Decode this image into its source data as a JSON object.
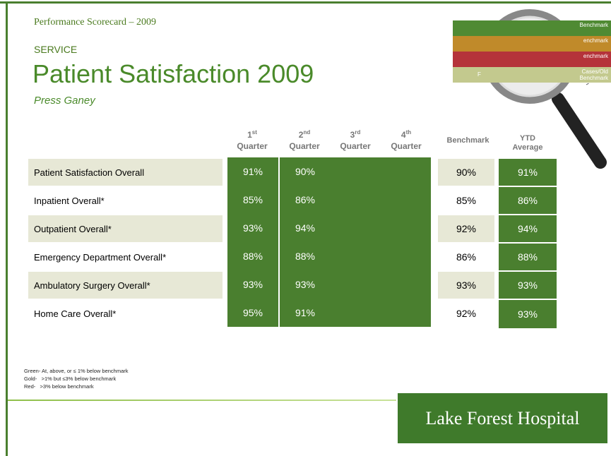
{
  "header": {
    "kicker": "Performance Scorecard – 2009",
    "section": "SERVICE",
    "title": "Patient Satisfaction 2009",
    "subtitle": "Press Ganey"
  },
  "legend_box": {
    "rows": [
      {
        "right": "Benchmark"
      },
      {
        "right": "enchmark"
      },
      {
        "right": "enchmark"
      },
      {
        "left": "F",
        "right": "Cases/Old Benchmark"
      }
    ]
  },
  "table": {
    "quarters": [
      {
        "num": "1",
        "suffix": "st",
        "word": "Quarter"
      },
      {
        "num": "2",
        "suffix": "nd",
        "word": "Quarter"
      },
      {
        "num": "3",
        "suffix": "rd",
        "word": "Quarter"
      },
      {
        "num": "4",
        "suffix": "th",
        "word": "Quarter"
      }
    ],
    "benchmark_header": "Benchmark",
    "ytd_header": {
      "line1": "YTD",
      "line2": "Average"
    },
    "rows": [
      {
        "label": "Patient Satisfaction Overall",
        "quarters": [
          "91%",
          "90%"
        ],
        "benchmark": "90%",
        "ytd": "91%"
      },
      {
        "label": "Inpatient Overall*",
        "quarters": [
          "85%",
          "86%"
        ],
        "benchmark": "85%",
        "ytd": "86%"
      },
      {
        "label": "Outpatient Overall*",
        "quarters": [
          "93%",
          "94%"
        ],
        "benchmark": "92%",
        "ytd": "94%"
      },
      {
        "label": "Emergency Department Overall*",
        "quarters": [
          "88%",
          "88%"
        ],
        "benchmark": "86%",
        "ytd": "88%"
      },
      {
        "label": "Ambulatory Surgery Overall*",
        "quarters": [
          "93%",
          "93%"
        ],
        "benchmark": "93%",
        "ytd": "93%"
      },
      {
        "label": "Home Care Overall*",
        "quarters": [
          "95%",
          "91%"
        ],
        "benchmark": "92%",
        "ytd": "93%"
      }
    ]
  },
  "footnotes": [
    "Green- At, above, or ≤ 1% below benchmark",
    "Gold-   >1% but ≤3% below benchmark",
    "Red-   >3% below benchmark"
  ],
  "logo": "Lake Forest Hospital"
}
